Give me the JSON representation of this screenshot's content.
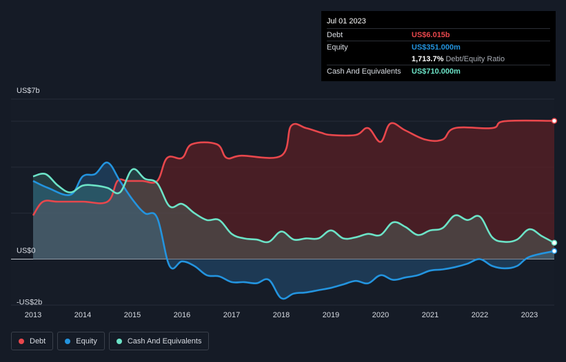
{
  "tooltip": {
    "date": "Jul 01 2023",
    "debt_label": "Debt",
    "debt_value": "US$6.015b",
    "equity_label": "Equity",
    "equity_value": "US$351.000m",
    "ratio_value": "1,713.7%",
    "ratio_label": "Debt/Equity Ratio",
    "cash_label": "Cash And Equivalents",
    "cash_value": "US$710.000m"
  },
  "legend": {
    "debt": "Debt",
    "equity": "Equity",
    "cash": "Cash And Equivalents"
  },
  "colors": {
    "debt": "#e8474c",
    "equity": "#2394df",
    "cash": "#6ce3c7",
    "background": "#151b26"
  },
  "chart_data": {
    "type": "area",
    "title": "",
    "xlabel": "",
    "ylabel": "",
    "unit": "US$ billions",
    "y_axis_labels": [
      "US$7b",
      "US$0",
      "-US$2b"
    ],
    "ylim": [
      -2,
      7
    ],
    "xlim": [
      2013.0,
      2023.5
    ],
    "x_ticks": [
      "2013",
      "2014",
      "2015",
      "2016",
      "2017",
      "2018",
      "2019",
      "2020",
      "2021",
      "2022",
      "2023"
    ],
    "grid": true,
    "series": [
      {
        "name": "Debt",
        "x": [
          2013.0,
          2013.2,
          2013.5,
          2014.0,
          2014.5,
          2014.7,
          2014.9,
          2015.2,
          2015.5,
          2015.7,
          2016.0,
          2016.2,
          2016.7,
          2016.9,
          2017.2,
          2018.0,
          2018.2,
          2018.5,
          2018.8,
          2019.0,
          2019.5,
          2019.75,
          2020.0,
          2020.2,
          2020.5,
          2020.9,
          2021.25,
          2021.5,
          2022.25,
          2022.5,
          2023.5
        ],
        "values": [
          1.9,
          2.5,
          2.5,
          2.5,
          2.5,
          3.4,
          3.4,
          3.4,
          3.4,
          4.4,
          4.4,
          5.0,
          5.0,
          4.4,
          4.5,
          4.5,
          5.8,
          5.7,
          5.5,
          5.4,
          5.4,
          5.7,
          5.1,
          5.9,
          5.6,
          5.2,
          5.2,
          5.7,
          5.7,
          6.0,
          6.015
        ]
      },
      {
        "name": "Equity",
        "x": [
          2013.0,
          2013.3,
          2013.75,
          2014.0,
          2014.25,
          2014.5,
          2014.75,
          2015.0,
          2015.25,
          2015.5,
          2015.75,
          2016.0,
          2016.25,
          2016.5,
          2016.75,
          2017.0,
          2017.25,
          2017.5,
          2017.75,
          2018.0,
          2018.25,
          2018.5,
          2018.75,
          2019.0,
          2019.25,
          2019.5,
          2019.75,
          2020.0,
          2020.25,
          2020.5,
          2020.75,
          2021.0,
          2021.25,
          2021.5,
          2021.75,
          2022.0,
          2022.25,
          2022.5,
          2022.75,
          2023.0,
          2023.5
        ],
        "values": [
          3.4,
          3.1,
          2.8,
          3.6,
          3.7,
          4.2,
          3.4,
          2.6,
          2.0,
          1.8,
          -0.3,
          -0.1,
          -0.3,
          -0.7,
          -0.75,
          -1.0,
          -1.0,
          -1.05,
          -0.9,
          -1.7,
          -1.5,
          -1.45,
          -1.35,
          -1.25,
          -1.1,
          -0.95,
          -1.05,
          -0.7,
          -0.9,
          -0.8,
          -0.7,
          -0.5,
          -0.45,
          -0.35,
          -0.2,
          0.0,
          -0.3,
          -0.4,
          -0.3,
          0.1,
          0.351
        ]
      },
      {
        "name": "Cash And Equivalents",
        "x": [
          2013.0,
          2013.25,
          2013.5,
          2013.75,
          2014.0,
          2014.25,
          2014.5,
          2014.75,
          2015.0,
          2015.25,
          2015.5,
          2015.75,
          2016.0,
          2016.25,
          2016.5,
          2016.75,
          2017.0,
          2017.25,
          2017.5,
          2017.75,
          2018.0,
          2018.25,
          2018.5,
          2018.75,
          2019.0,
          2019.25,
          2019.5,
          2019.75,
          2020.0,
          2020.25,
          2020.5,
          2020.75,
          2021.0,
          2021.25,
          2021.5,
          2021.75,
          2022.0,
          2022.25,
          2022.5,
          2022.75,
          2023.0,
          2023.25,
          2023.5
        ],
        "values": [
          3.6,
          3.7,
          3.2,
          2.9,
          3.2,
          3.2,
          3.1,
          2.9,
          3.9,
          3.5,
          3.3,
          2.3,
          2.4,
          2.0,
          1.7,
          1.7,
          1.1,
          0.9,
          0.85,
          0.75,
          1.2,
          0.85,
          0.9,
          0.9,
          1.25,
          0.9,
          0.95,
          1.1,
          1.05,
          1.6,
          1.4,
          1.05,
          1.25,
          1.35,
          1.9,
          1.7,
          1.85,
          0.95,
          0.75,
          0.85,
          1.3,
          1.0,
          0.71
        ]
      }
    ]
  }
}
